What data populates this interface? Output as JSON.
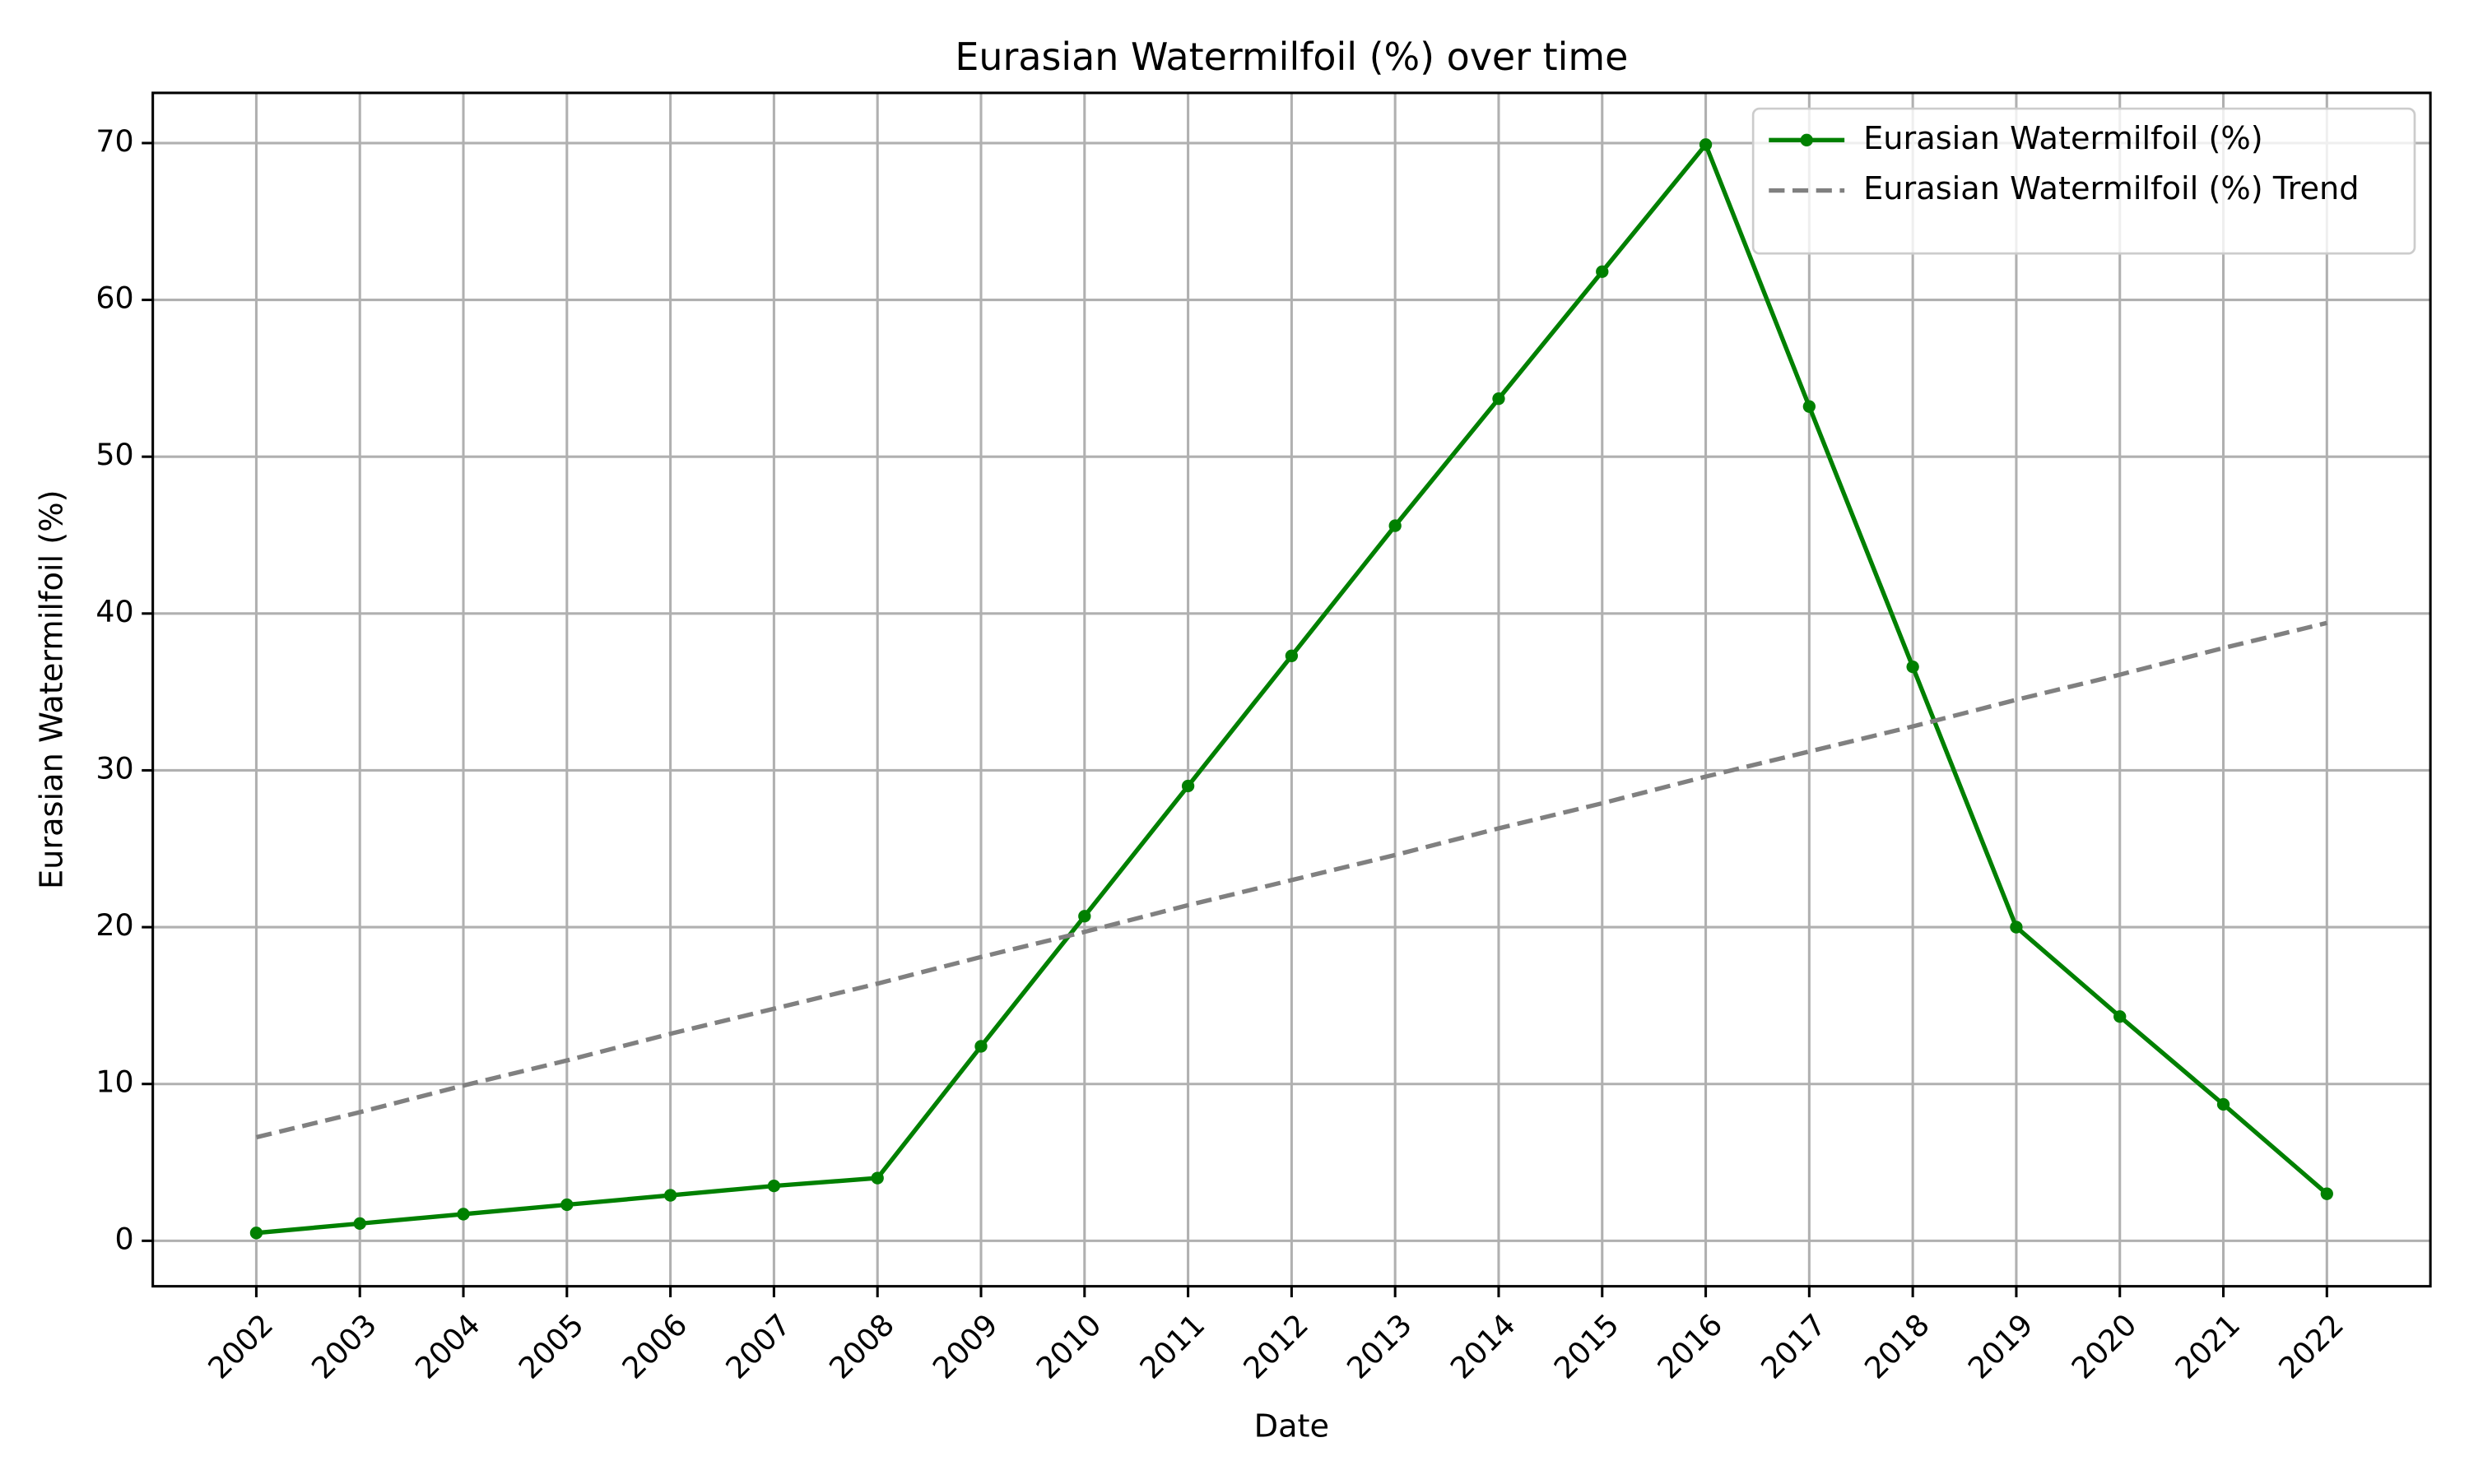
{
  "chart_data": {
    "type": "line",
    "title": "Eurasian Watermilfoil (%) over time",
    "xlabel": "Date",
    "ylabel": "Eurasian Watermilfoil (%)",
    "x": [
      2002,
      2003,
      2004,
      2005,
      2006,
      2007,
      2008,
      2009,
      2010,
      2011,
      2012,
      2013,
      2014,
      2015,
      2016,
      2017,
      2018,
      2019,
      2020,
      2021,
      2022
    ],
    "series": [
      {
        "name": "Eurasian Watermilfoil (%)",
        "color": "#008000",
        "linestyle": "solid",
        "marker": "o",
        "values": [
          0.5,
          1.1,
          1.7,
          2.3,
          2.9,
          3.5,
          4.0,
          12.4,
          20.7,
          29.0,
          37.3,
          45.6,
          53.7,
          61.8,
          69.9,
          53.2,
          36.6,
          20.0,
          14.3,
          8.7,
          3.0
        ]
      },
      {
        "name": "Eurasian Watermilfoil (%) Trend",
        "color": "#808080",
        "linestyle": "dashed",
        "values": [
          6.6,
          8.2,
          9.9,
          11.5,
          13.2,
          14.8,
          16.4,
          18.1,
          19.7,
          21.4,
          23.0,
          24.6,
          26.3,
          27.9,
          29.6,
          31.2,
          32.8,
          34.5,
          36.1,
          37.8,
          39.4
        ]
      }
    ],
    "xlim": [
      2001.0,
      2023.0
    ],
    "ylim": [
      -2.9,
      73.2
    ],
    "xticks": [
      2002,
      2003,
      2004,
      2005,
      2006,
      2007,
      2008,
      2009,
      2010,
      2011,
      2012,
      2013,
      2014,
      2015,
      2016,
      2017,
      2018,
      2019,
      2020,
      2021,
      2022
    ],
    "yticks": [
      0,
      10,
      20,
      30,
      40,
      50,
      60,
      70
    ],
    "grid": true,
    "legend": "upper right"
  }
}
